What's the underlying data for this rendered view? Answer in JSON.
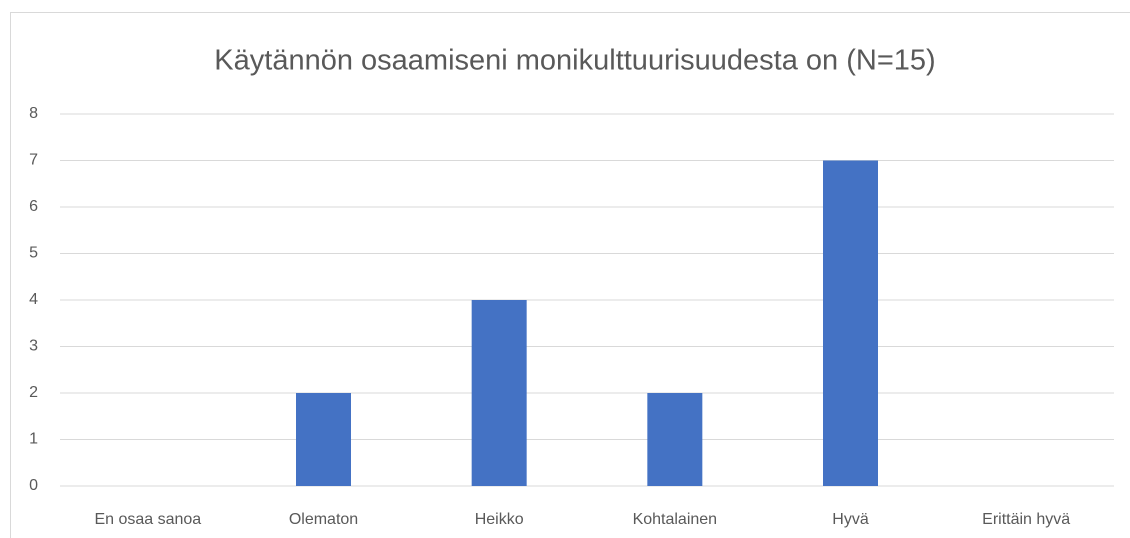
{
  "chart_data": {
    "type": "bar",
    "title": "Käytännön osaamiseni monikulttuurisuudesta on (N=15)",
    "categories": [
      "En osaa sanoa",
      "Olematon",
      "Heikko",
      "Kohtalainen",
      "Hyvä",
      "Erittäin hyvä"
    ],
    "values": [
      0,
      2,
      4,
      2,
      7,
      0
    ],
    "color": "#4472c4",
    "ylim": [
      0,
      8
    ],
    "yticks": [
      0,
      1,
      2,
      3,
      4,
      5,
      6,
      7,
      8
    ],
    "grid": true
  }
}
